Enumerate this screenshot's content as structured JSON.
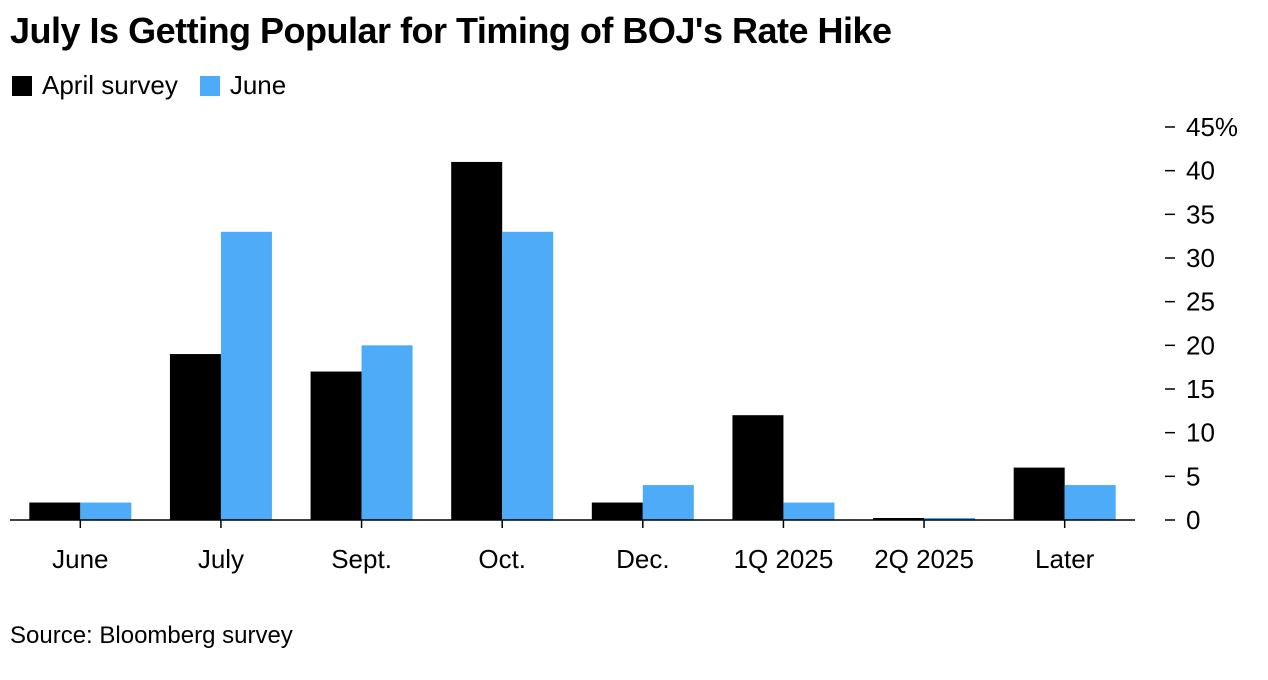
{
  "title": "July Is Getting Popular for Timing of BOJ's Rate Hike",
  "source": "Source: Bloomberg survey",
  "colors": {
    "april": "#000000",
    "june": "#4dabf7",
    "axis": "#000000"
  },
  "chart_data": {
    "type": "bar",
    "categories": [
      "June",
      "July",
      "Sept.",
      "Oct.",
      "Dec.",
      "1Q 2025",
      "2Q 2025",
      "Later"
    ],
    "series": [
      {
        "name": "April survey",
        "color": "#000000",
        "values": [
          2,
          19,
          17,
          41,
          2,
          12,
          0,
          6
        ]
      },
      {
        "name": "June",
        "color": "#4dabf7",
        "values": [
          2,
          33,
          20,
          33,
          4,
          2,
          0,
          4
        ]
      }
    ],
    "ylim": [
      0,
      45
    ],
    "yticks": [
      0,
      5,
      10,
      15,
      20,
      25,
      30,
      35,
      40,
      45
    ],
    "ytick_labels": [
      "0",
      "5",
      "10",
      "15",
      "20",
      "25",
      "30",
      "35",
      "40",
      "45%"
    ],
    "y_axis_side": "right",
    "grid": false,
    "legend_position": "top-left"
  }
}
